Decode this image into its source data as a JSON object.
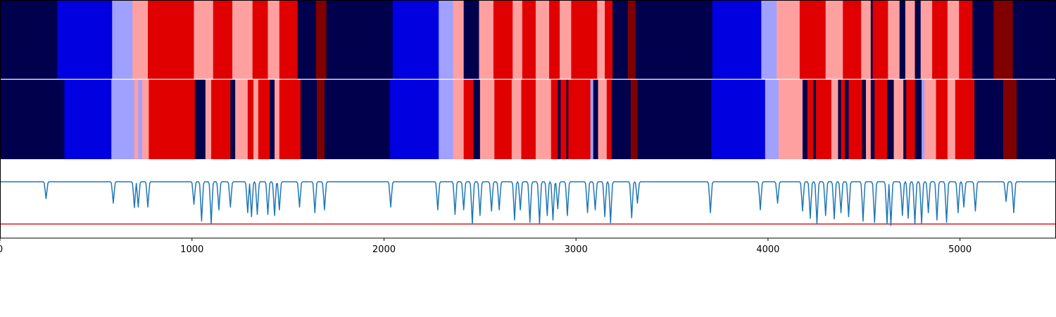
{
  "chart_data": {
    "type": "segmentation-strip-with-line",
    "x_range": [
      0,
      5500
    ],
    "x_ticks": [
      {
        "value": 0,
        "label": "0"
      },
      {
        "value": 1000,
        "label": "1000"
      },
      {
        "value": 2000,
        "label": "2000"
      },
      {
        "value": 3000,
        "label": "3000"
      },
      {
        "value": 4000,
        "label": "4000"
      },
      {
        "value": 5000,
        "label": "5000"
      }
    ],
    "colors": {
      "navy": "#00004c",
      "blue": "#0000e0",
      "lightblue": "#a0a0ff",
      "pink": "#ffa0a0",
      "red": "#e00000",
      "darkred": "#800000",
      "line": "#1f77b4",
      "threshold": "#e31a1c"
    },
    "strips": [
      {
        "name": "top-segmentation",
        "segments": [
          [
            0,
            298,
            "navy"
          ],
          [
            298,
            584,
            "blue"
          ],
          [
            584,
            690,
            "lightblue"
          ],
          [
            690,
            770,
            "pink"
          ],
          [
            770,
            1010,
            "red"
          ],
          [
            1010,
            1110,
            "pink"
          ],
          [
            1110,
            1210,
            "red"
          ],
          [
            1210,
            1315,
            "pink"
          ],
          [
            1315,
            1395,
            "red"
          ],
          [
            1395,
            1455,
            "pink"
          ],
          [
            1455,
            1550,
            "red"
          ],
          [
            1550,
            1645,
            "navy"
          ],
          [
            1645,
            1700,
            "darkred"
          ],
          [
            1700,
            2045,
            "navy"
          ],
          [
            2045,
            2285,
            "blue"
          ],
          [
            2285,
            2360,
            "lightblue"
          ],
          [
            2360,
            2415,
            "pink"
          ],
          [
            2415,
            2495,
            "navy"
          ],
          [
            2495,
            2570,
            "pink"
          ],
          [
            2570,
            2670,
            "red"
          ],
          [
            2670,
            2720,
            "pink"
          ],
          [
            2720,
            2790,
            "red"
          ],
          [
            2790,
            2860,
            "pink"
          ],
          [
            2860,
            2915,
            "red"
          ],
          [
            2915,
            2975,
            "pink"
          ],
          [
            2975,
            3110,
            "red"
          ],
          [
            3110,
            3150,
            "pink"
          ],
          [
            3150,
            3190,
            "red"
          ],
          [
            3190,
            3270,
            "navy"
          ],
          [
            3270,
            3310,
            "darkred"
          ],
          [
            3310,
            3710,
            "navy"
          ],
          [
            3710,
            3965,
            "blue"
          ],
          [
            3965,
            4045,
            "lightblue"
          ],
          [
            4045,
            4165,
            "pink"
          ],
          [
            4165,
            4300,
            "red"
          ],
          [
            4300,
            4390,
            "pink"
          ],
          [
            4390,
            4485,
            "red"
          ],
          [
            4485,
            4535,
            "pink"
          ],
          [
            4535,
            4545,
            "navy"
          ],
          [
            4545,
            4625,
            "red"
          ],
          [
            4625,
            4685,
            "pink"
          ],
          [
            4685,
            4715,
            "navy"
          ],
          [
            4715,
            4765,
            "pink"
          ],
          [
            4765,
            4795,
            "navy"
          ],
          [
            4795,
            4855,
            "pink"
          ],
          [
            4855,
            4935,
            "red"
          ],
          [
            4935,
            4995,
            "pink"
          ],
          [
            4995,
            5065,
            "red"
          ],
          [
            5065,
            5175,
            "navy"
          ],
          [
            5175,
            5275,
            "darkred"
          ],
          [
            5275,
            5500,
            "navy"
          ]
        ]
      },
      {
        "name": "bottom-segmentation",
        "segments": [
          [
            0,
            335,
            "navy"
          ],
          [
            335,
            580,
            "blue"
          ],
          [
            580,
            700,
            "lightblue"
          ],
          [
            700,
            720,
            "pink"
          ],
          [
            720,
            740,
            "lightblue"
          ],
          [
            740,
            775,
            "pink"
          ],
          [
            775,
            1015,
            "red"
          ],
          [
            1015,
            1070,
            "navy"
          ],
          [
            1070,
            1100,
            "pink"
          ],
          [
            1100,
            1200,
            "red"
          ],
          [
            1200,
            1225,
            "navy"
          ],
          [
            1225,
            1290,
            "pink"
          ],
          [
            1290,
            1320,
            "red"
          ],
          [
            1320,
            1345,
            "pink"
          ],
          [
            1345,
            1405,
            "red"
          ],
          [
            1405,
            1430,
            "navy"
          ],
          [
            1430,
            1455,
            "pink"
          ],
          [
            1455,
            1565,
            "red"
          ],
          [
            1565,
            1650,
            "navy"
          ],
          [
            1650,
            1690,
            "darkred"
          ],
          [
            1690,
            2030,
            "navy"
          ],
          [
            2030,
            2285,
            "blue"
          ],
          [
            2285,
            2360,
            "lightblue"
          ],
          [
            2360,
            2415,
            "pink"
          ],
          [
            2415,
            2465,
            "red"
          ],
          [
            2465,
            2500,
            "navy"
          ],
          [
            2500,
            2575,
            "pink"
          ],
          [
            2575,
            2665,
            "red"
          ],
          [
            2665,
            2715,
            "pink"
          ],
          [
            2715,
            2790,
            "red"
          ],
          [
            2790,
            2870,
            "pink"
          ],
          [
            2870,
            2905,
            "red"
          ],
          [
            2905,
            2920,
            "navy"
          ],
          [
            2920,
            2950,
            "red"
          ],
          [
            2950,
            2960,
            "navy"
          ],
          [
            2960,
            3075,
            "red"
          ],
          [
            3075,
            3090,
            "lightblue"
          ],
          [
            3090,
            3115,
            "navy"
          ],
          [
            3115,
            3160,
            "pink"
          ],
          [
            3160,
            3185,
            "red"
          ],
          [
            3185,
            3285,
            "navy"
          ],
          [
            3285,
            3320,
            "darkred"
          ],
          [
            3320,
            3705,
            "navy"
          ],
          [
            3705,
            3985,
            "blue"
          ],
          [
            3985,
            4055,
            "lightblue"
          ],
          [
            4055,
            4180,
            "pink"
          ],
          [
            4180,
            4205,
            "navy"
          ],
          [
            4205,
            4235,
            "red"
          ],
          [
            4235,
            4250,
            "navy"
          ],
          [
            4250,
            4330,
            "red"
          ],
          [
            4330,
            4365,
            "pink"
          ],
          [
            4365,
            4380,
            "navy"
          ],
          [
            4380,
            4400,
            "red"
          ],
          [
            4400,
            4420,
            "navy"
          ],
          [
            4420,
            4490,
            "red"
          ],
          [
            4490,
            4510,
            "navy"
          ],
          [
            4510,
            4535,
            "pink"
          ],
          [
            4535,
            4555,
            "navy"
          ],
          [
            4555,
            4620,
            "red"
          ],
          [
            4620,
            4655,
            "navy"
          ],
          [
            4655,
            4705,
            "pink"
          ],
          [
            4705,
            4720,
            "navy"
          ],
          [
            4720,
            4765,
            "red"
          ],
          [
            4765,
            4800,
            "navy"
          ],
          [
            4800,
            4815,
            "lightblue"
          ],
          [
            4815,
            4875,
            "pink"
          ],
          [
            4875,
            4935,
            "red"
          ],
          [
            4935,
            4975,
            "pink"
          ],
          [
            4975,
            5075,
            "red"
          ],
          [
            5075,
            5225,
            "navy"
          ],
          [
            5225,
            5295,
            "darkred"
          ],
          [
            5295,
            5500,
            "navy"
          ]
        ]
      }
    ],
    "line_series": {
      "name": "signal",
      "y_range": [
        0,
        1.4
      ],
      "baseline": 1.0,
      "threshold": 0.25,
      "dips": [
        [
          240,
          0.7
        ],
        [
          590,
          0.62
        ],
        [
          700,
          0.54
        ],
        [
          720,
          0.55
        ],
        [
          770,
          0.55
        ],
        [
          1010,
          0.6
        ],
        [
          1050,
          0.3
        ],
        [
          1100,
          0.25
        ],
        [
          1140,
          0.5
        ],
        [
          1200,
          0.55
        ],
        [
          1290,
          0.45
        ],
        [
          1310,
          0.38
        ],
        [
          1340,
          0.42
        ],
        [
          1395,
          0.42
        ],
        [
          1430,
          0.4
        ],
        [
          1455,
          0.5
        ],
        [
          1560,
          0.55
        ],
        [
          1640,
          0.45
        ],
        [
          1690,
          0.5
        ],
        [
          2035,
          0.55
        ],
        [
          2280,
          0.5
        ],
        [
          2370,
          0.42
        ],
        [
          2415,
          0.5
        ],
        [
          2460,
          0.25
        ],
        [
          2500,
          0.4
        ],
        [
          2560,
          0.48
        ],
        [
          2600,
          0.5
        ],
        [
          2680,
          0.32
        ],
        [
          2710,
          0.5
        ],
        [
          2760,
          0.28
        ],
        [
          2810,
          0.26
        ],
        [
          2850,
          0.4
        ],
        [
          2880,
          0.32
        ],
        [
          2905,
          0.52
        ],
        [
          2955,
          0.4
        ],
        [
          3060,
          0.45
        ],
        [
          3100,
          0.5
        ],
        [
          3150,
          0.38
        ],
        [
          3180,
          0.27
        ],
        [
          3290,
          0.36
        ],
        [
          3320,
          0.62
        ],
        [
          3700,
          0.45
        ],
        [
          3960,
          0.5
        ],
        [
          4050,
          0.62
        ],
        [
          4180,
          0.48
        ],
        [
          4220,
          0.35
        ],
        [
          4255,
          0.25
        ],
        [
          4300,
          0.4
        ],
        [
          4345,
          0.34
        ],
        [
          4380,
          0.45
        ],
        [
          4420,
          0.38
        ],
        [
          4495,
          0.3
        ],
        [
          4555,
          0.28
        ],
        [
          4620,
          0.25
        ],
        [
          4640,
          0.22
        ],
        [
          4700,
          0.4
        ],
        [
          4730,
          0.35
        ],
        [
          4765,
          0.25
        ],
        [
          4800,
          0.26
        ],
        [
          4835,
          0.45
        ],
        [
          4880,
          0.32
        ],
        [
          4930,
          0.28
        ],
        [
          4990,
          0.45
        ],
        [
          5020,
          0.55
        ],
        [
          5080,
          0.48
        ],
        [
          5240,
          0.65
        ],
        [
          5280,
          0.45
        ]
      ]
    }
  }
}
